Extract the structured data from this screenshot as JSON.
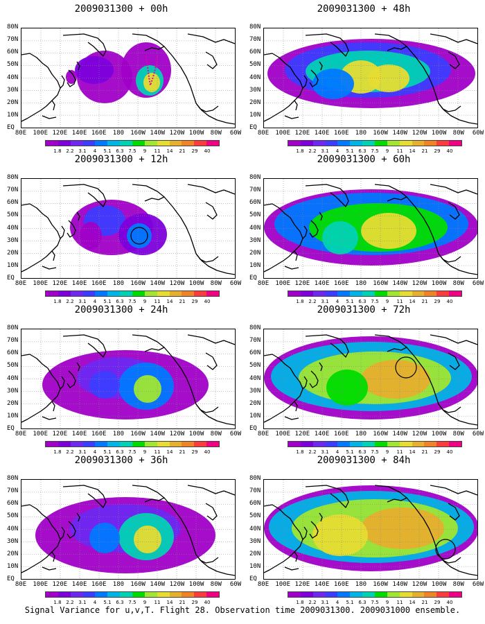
{
  "panels": [
    {
      "title": "2009031300 + 00h",
      "col": 0,
      "row": 0,
      "intensity": 0
    },
    {
      "title": "2009031300 + 12h",
      "col": 0,
      "row": 1,
      "intensity": 1
    },
    {
      "title": "2009031300 + 24h",
      "col": 0,
      "row": 2,
      "intensity": 2
    },
    {
      "title": "2009031300 + 36h",
      "col": 0,
      "row": 3,
      "intensity": 3
    },
    {
      "title": "2009031300 + 48h",
      "col": 1,
      "row": 0,
      "intensity": 4
    },
    {
      "title": "2009031300 + 60h",
      "col": 1,
      "row": 1,
      "intensity": 5
    },
    {
      "title": "2009031300 + 72h",
      "col": 1,
      "row": 2,
      "intensity": 6
    },
    {
      "title": "2009031300 + 84h",
      "col": 1,
      "row": 3,
      "intensity": 7
    }
  ],
  "lat_labels": [
    "80N",
    "70N",
    "60N",
    "50N",
    "40N",
    "30N",
    "20N",
    "10N",
    "EQ"
  ],
  "lon_labels": [
    "80E",
    "100E",
    "120E",
    "140E",
    "160E",
    "180",
    "160W",
    "140W",
    "120W",
    "100W",
    "80W",
    "60W"
  ],
  "colorbar": {
    "labels": [
      "1.8",
      "2.2",
      "3.1",
      "4",
      "5.1",
      "6.3",
      "7.5",
      "9",
      "11",
      "14",
      "21",
      "29",
      "40"
    ],
    "colors": [
      "#a000c8",
      "#7d00dc",
      "#6e28f0",
      "#3c3cff",
      "#0078ff",
      "#00b4e6",
      "#00d2b4",
      "#00dc00",
      "#a0e632",
      "#e6dc32",
      "#e6af2d",
      "#f08228",
      "#fa3c3c",
      "#f00082"
    ]
  },
  "caption": "Signal Variance for u,v,T. Flight 28. Observation time 2009031300. 2009031000 ensemble."
}
